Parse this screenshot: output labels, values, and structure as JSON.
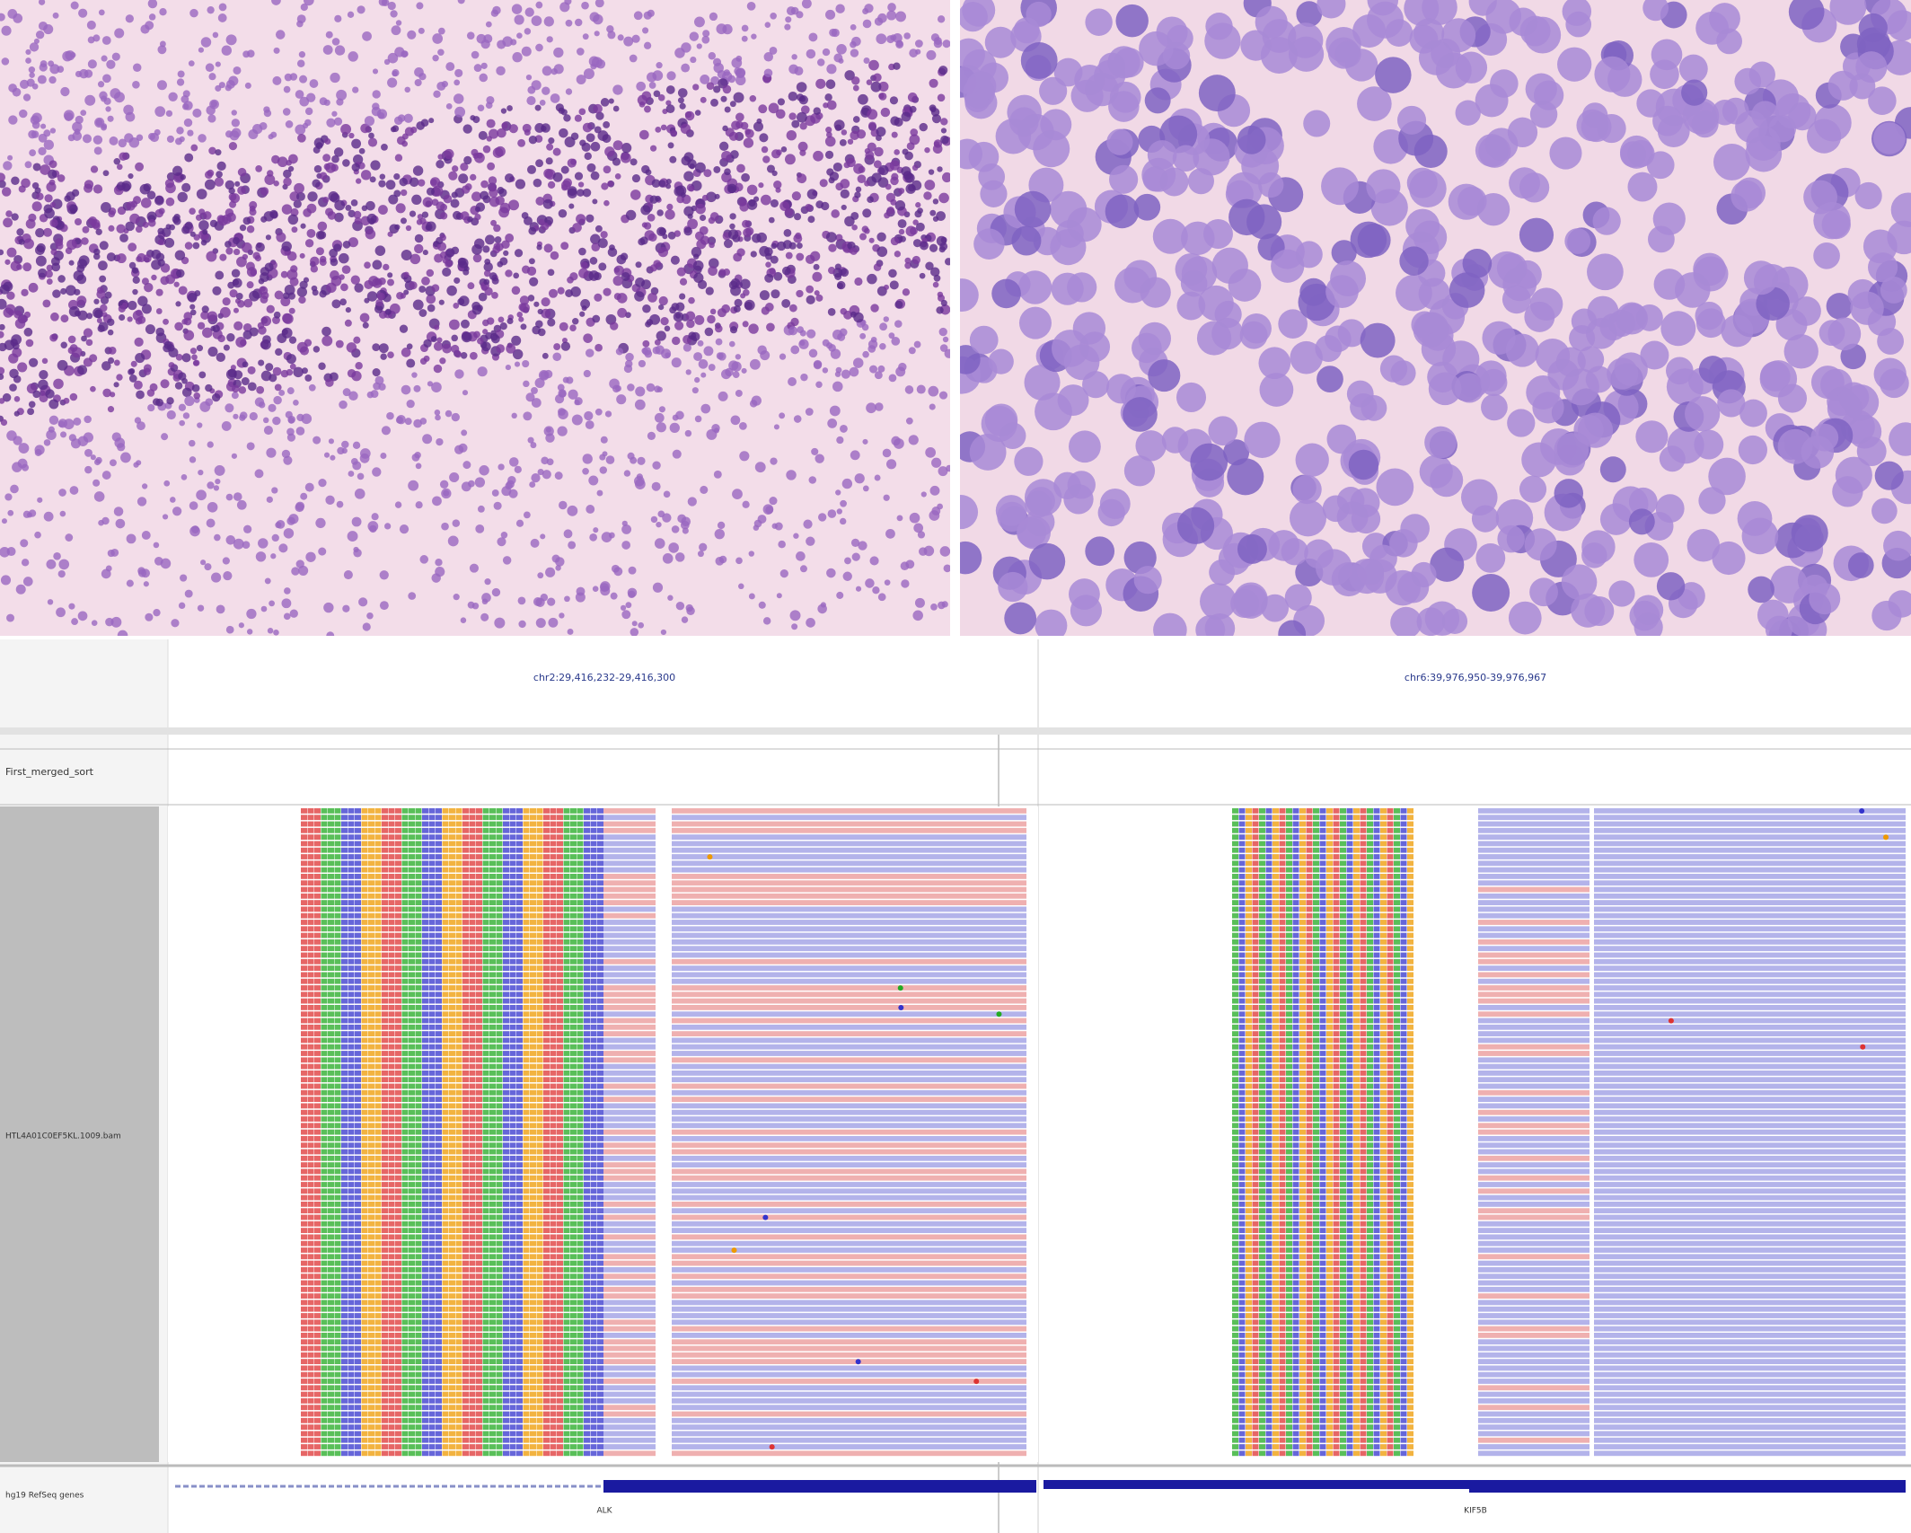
{
  "igv": {
    "loci": [
      "chr2:29,416,232-29,416,300",
      "chr6:39,976,950-39,976,967"
    ],
    "track_names": [
      "First_merged_sort",
      "HTL4A01C0EF5KL.1009.bam",
      "hg19 RefSeq genes"
    ],
    "gene_labels": [
      "ALK",
      "KIF5B"
    ]
  }
}
